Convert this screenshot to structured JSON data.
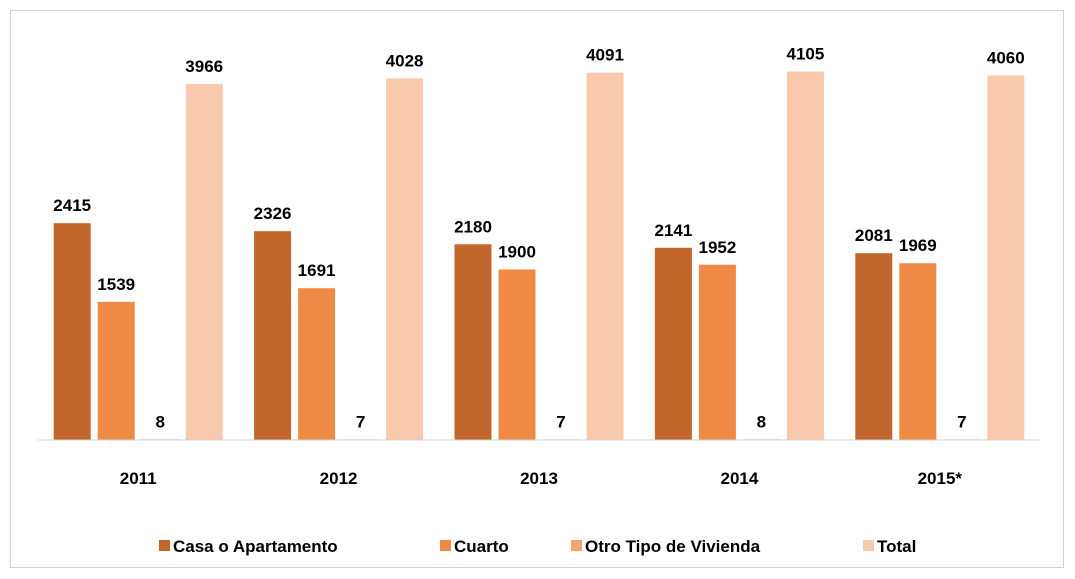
{
  "chart_data": {
    "type": "bar",
    "categories": [
      "2011",
      "2012",
      "2013",
      "2014",
      "2015*"
    ],
    "series": [
      {
        "name": "Casa o Apartamento",
        "color": "#c2672c",
        "values": [
          2415,
          2326,
          2180,
          2141,
          2081
        ]
      },
      {
        "name": "Cuarto",
        "color": "#ee8a45",
        "values": [
          1539,
          1691,
          1900,
          1952,
          1969
        ]
      },
      {
        "name": "Otro Tipo de Vivienda",
        "color": "#f3a56e",
        "values": [
          8,
          7,
          7,
          8,
          7
        ]
      },
      {
        "name": "Total",
        "color": "#f8c9ad",
        "values": [
          3966,
          4028,
          4091,
          4105,
          4060
        ]
      }
    ],
    "ylim": [
      0,
      4500
    ],
    "legend": "bottom"
  }
}
